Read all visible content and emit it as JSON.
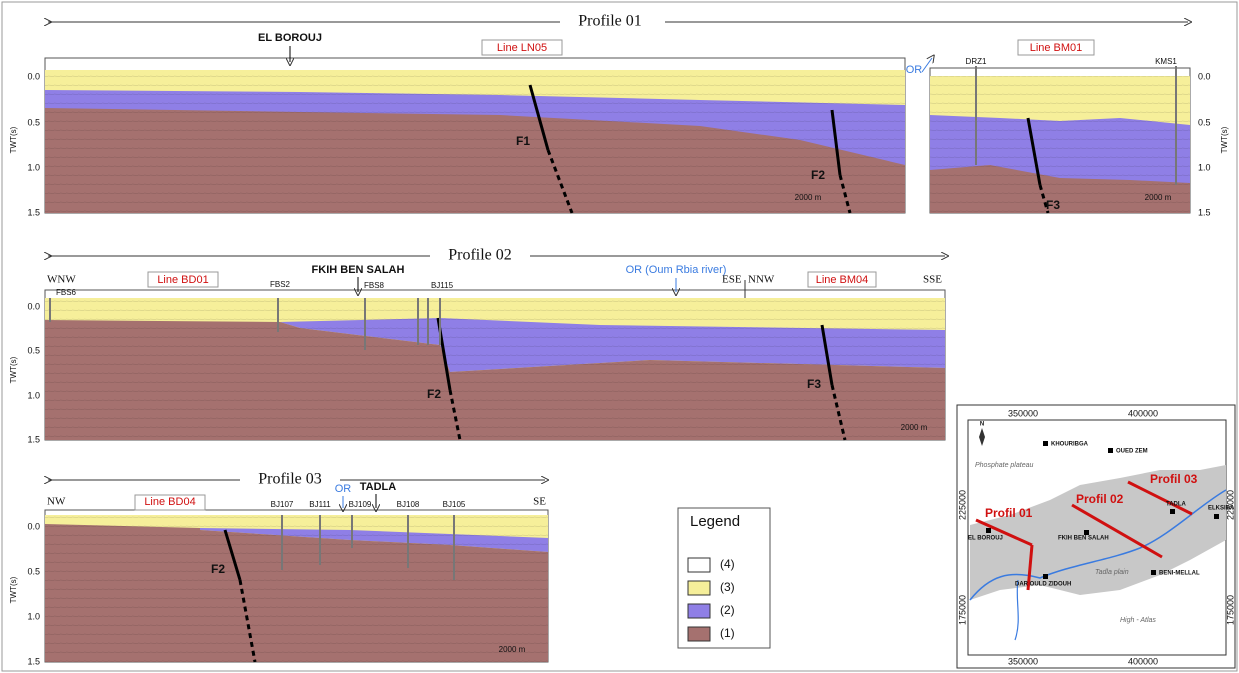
{
  "profile_01": {
    "title": "Profile 01",
    "location": "EL BOROUJ",
    "line_left": "Line LN05",
    "line_right": "Line BM01",
    "river": "OR",
    "wells": [
      "DRZ1",
      "KMS1"
    ],
    "axis_label": "TWT(s)",
    "ticks": [
      "0.0",
      "0.5",
      "1.0",
      "1.5"
    ],
    "faults": [
      "F1",
      "F2",
      "F3"
    ],
    "scale": "2000 m"
  },
  "profile_02": {
    "title": "Profile 02",
    "directions": [
      "WNW",
      "ESE",
      "NNW",
      "SSE"
    ],
    "lines": [
      "Line BD01",
      "Line BM04"
    ],
    "location": "FKIH BEN SALAH",
    "wells": [
      "FBS6",
      "FBS2",
      "FBS8",
      "BJ115"
    ],
    "river": "OR (Oum Rbia river)",
    "axis_label": "TWT(s)",
    "ticks": [
      "0.0",
      "0.5",
      "1.0",
      "1.5"
    ],
    "faults": [
      "F2",
      "F3"
    ],
    "scale": "2000 m"
  },
  "profile_03": {
    "title": "Profile 03",
    "directions": [
      "NW",
      "SE"
    ],
    "line": "Line BD04",
    "river": "OR",
    "location": "TADLA",
    "wells": [
      "BJ107",
      "BJ111",
      "BJ109",
      "BJ108",
      "BJ105"
    ],
    "axis_label": "TWT(s)",
    "ticks": [
      "0.0",
      "0.5",
      "1.0",
      "1.5"
    ],
    "fault": "F2",
    "scale": "2000 m"
  },
  "legend": {
    "title": "Legend",
    "items": [
      "(4)",
      "(3)",
      "(2)",
      "(1)"
    ]
  },
  "map": {
    "x_ticks": [
      "350000",
      "400000"
    ],
    "y_ticks": [
      "225000",
      "175000"
    ],
    "north": "N",
    "places": [
      "KHOURIBGA",
      "OUED ZEM",
      "EL BOROUJ",
      "FKIH BEN SALAH",
      "TADLA",
      "ELKSIBA",
      "BENI-MELLAL",
      "DAR OULD ZIDOUH"
    ],
    "regions": [
      "Phosphate plateau",
      "Tadla plain",
      "High - Atlas"
    ],
    "profiles": [
      "Profil 01",
      "Profil 02",
      "Profil 03"
    ]
  }
}
